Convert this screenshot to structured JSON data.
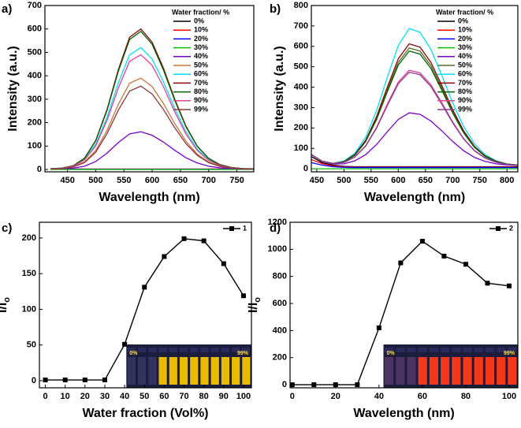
{
  "chart_data": [
    {
      "type": "line",
      "label": "a)",
      "xlabel": "Wavelength (nm)",
      "ylabel": "Intensity (a.u.)",
      "legend_title": "Water fraction/ %",
      "legend": "upper right",
      "grid": false,
      "xlim": [
        410,
        780
      ],
      "xticks": [
        450,
        500,
        550,
        600,
        650,
        700,
        750
      ],
      "ylim": [
        -10,
        700
      ],
      "yticks": [
        0,
        100,
        200,
        300,
        400,
        500,
        600,
        700
      ],
      "x": [
        420,
        440,
        460,
        480,
        500,
        520,
        540,
        560,
        580,
        600,
        620,
        640,
        660,
        680,
        700,
        720,
        740,
        760,
        780
      ],
      "series": [
        {
          "name": "0%",
          "color": "#000000",
          "values": [
            4,
            1,
            1,
            1,
            1,
            1,
            1,
            1,
            1,
            1,
            1,
            1,
            1,
            1,
            1,
            1,
            1,
            1,
            1
          ]
        },
        {
          "name": "10%",
          "color": "#ff0000",
          "values": [
            2,
            2,
            2,
            2,
            2,
            2,
            2,
            2,
            2,
            2,
            2,
            2,
            2,
            2,
            2,
            2,
            2,
            2,
            2
          ]
        },
        {
          "name": "20%",
          "color": "#0000ff",
          "values": [
            1,
            1,
            1,
            1,
            1,
            1,
            1,
            1,
            1,
            1,
            1,
            1,
            1,
            1,
            1,
            1,
            1,
            1,
            1
          ]
        },
        {
          "name": "30%",
          "color": "#00c000",
          "values": [
            0,
            0,
            0,
            0,
            0,
            0,
            0,
            0,
            0,
            0,
            0,
            0,
            0,
            0,
            0,
            0,
            0,
            0,
            0
          ]
        },
        {
          "name": "40%",
          "color": "#7a00c8",
          "values": [
            2,
            3,
            6,
            14,
            34,
            70,
            115,
            152,
            161,
            146,
            117,
            82,
            50,
            28,
            14,
            7,
            4,
            2,
            2
          ]
        },
        {
          "name": "50%",
          "color": "#c8783c",
          "values": [
            2,
            4,
            11,
            32,
            81,
            167,
            278,
            368,
            390,
            354,
            281,
            196,
            120,
            65,
            32,
            14,
            6,
            3,
            2
          ]
        },
        {
          "name": "60%",
          "color": "#00e0f0",
          "values": [
            3,
            5,
            14,
            42,
            108,
            222,
            370,
            490,
            520,
            471,
            374,
            260,
            160,
            86,
            42,
            18,
            8,
            4,
            3
          ]
        },
        {
          "name": "70%",
          "color": "#8b0000",
          "values": [
            3,
            6,
            16,
            48,
            124,
            256,
            426,
            565,
            600,
            543,
            432,
            300,
            184,
            99,
            48,
            21,
            9,
            4,
            3
          ]
        },
        {
          "name": "80%",
          "color": "#006400",
          "values": [
            3,
            6,
            16,
            47,
            122,
            252,
            419,
            555,
            590,
            534,
            424,
            295,
            181,
            98,
            47,
            20,
            8,
            4,
            3
          ]
        },
        {
          "name": "90%",
          "color": "#e0409c",
          "values": [
            2,
            5,
            14,
            40,
            101,
            210,
            348,
            462,
            490,
            444,
            353,
            246,
            150,
            81,
            39,
            17,
            7,
            3,
            2
          ]
        },
        {
          "name": "99%",
          "color": "#8b3a3a",
          "values": [
            2,
            4,
            11,
            29,
            74,
            153,
            253,
            335,
            356,
            322,
            256,
            178,
            110,
            60,
            29,
            13,
            6,
            3,
            2
          ]
        }
      ]
    },
    {
      "type": "line",
      "label": "b)",
      "xlabel": "Wavelength (nm)",
      "ylabel": "Intensity (a.u.)",
      "legend_title": "Water fraction/ %",
      "legend": "upper right",
      "grid": false,
      "xlim": [
        440,
        820
      ],
      "xticks": [
        450,
        500,
        550,
        600,
        650,
        700,
        750,
        800
      ],
      "ylim": [
        -15,
        800
      ],
      "yticks": [
        0,
        100,
        200,
        300,
        400,
        500,
        600,
        700,
        800
      ],
      "x": [
        440,
        460,
        480,
        500,
        520,
        540,
        560,
        580,
        600,
        620,
        640,
        660,
        680,
        700,
        720,
        740,
        760,
        780,
        800,
        820
      ],
      "series": [
        {
          "name": "0%",
          "color": "#000000",
          "values": [
            60,
            30,
            18,
            12,
            10,
            10,
            10,
            10,
            10,
            10,
            10,
            10,
            10,
            10,
            10,
            10,
            10,
            10,
            10,
            10
          ]
        },
        {
          "name": "10%",
          "color": "#ff0000",
          "values": [
            45,
            25,
            14,
            10,
            8,
            8,
            8,
            8,
            8,
            8,
            8,
            8,
            8,
            8,
            8,
            8,
            8,
            8,
            8,
            8
          ]
        },
        {
          "name": "20%",
          "color": "#0000ff",
          "values": [
            30,
            18,
            10,
            7,
            6,
            6,
            6,
            6,
            6,
            6,
            6,
            6,
            6,
            6,
            6,
            6,
            6,
            6,
            6,
            6
          ]
        },
        {
          "name": "30%",
          "color": "#00c000",
          "values": [
            0,
            0,
            0,
            0,
            0,
            0,
            0,
            0,
            0,
            0,
            0,
            0,
            0,
            0,
            0,
            0,
            0,
            0,
            0,
            0
          ]
        },
        {
          "name": "40%",
          "color": "#7a00c8",
          "values": [
            70,
            36,
            23,
            24,
            39,
            69,
            119,
            182,
            242,
            274,
            267,
            234,
            186,
            134,
            89,
            56,
            36,
            24,
            19,
            16
          ]
        },
        {
          "name": "50%",
          "color": "#556b2f",
          "values": [
            70,
            37,
            26,
            35,
            68,
            136,
            247,
            389,
            521,
            592,
            577,
            505,
            396,
            281,
            181,
            107,
            61,
            36,
            23,
            18
          ]
        },
        {
          "name": "60%",
          "color": "#00e0f0",
          "values": [
            70,
            37,
            27,
            38,
            76,
            155,
            285,
            450,
            604,
            687,
            669,
            585,
            458,
            324,
            208,
            122,
            69,
            39,
            24,
            18
          ]
        },
        {
          "name": "70%",
          "color": "#8b0000",
          "values": [
            70,
            37,
            26,
            35,
            70,
            140,
            255,
            401,
            539,
            612,
            596,
            521,
            409,
            290,
            187,
            110,
            63,
            37,
            23,
            18
          ]
        },
        {
          "name": "80%",
          "color": "#006400",
          "values": [
            70,
            37,
            26,
            34,
            66,
            133,
            241,
            379,
            508,
            577,
            562,
            492,
            386,
            274,
            177,
            105,
            60,
            35,
            23,
            18
          ]
        },
        {
          "name": "90%",
          "color": "#e0409c",
          "values": [
            70,
            36,
            25,
            31,
            58,
            113,
            203,
            318,
            425,
            483,
            470,
            412,
            324,
            230,
            149,
            90,
            53,
            32,
            22,
            17
          ]
        },
        {
          "name": "99%",
          "color": "#8b3a8b",
          "values": [
            70,
            36,
            25,
            31,
            57,
            111,
            199,
            311,
            417,
            473,
            461,
            403,
            317,
            226,
            147,
            88,
            52,
            32,
            21,
            17
          ]
        }
      ]
    },
    {
      "type": "line",
      "label": "c)",
      "xlabel": "Water fraction (Vol%)",
      "ylabel": {
        "main": "I/I",
        "sub": "o"
      },
      "legend": "upper right",
      "grid": false,
      "marker": "square",
      "xlim": [
        -3,
        104
      ],
      "xticks": [
        0,
        10,
        20,
        30,
        40,
        50,
        60,
        70,
        80,
        90,
        100
      ],
      "ylim": [
        -10,
        222
      ],
      "yticks": [
        0,
        50,
        100,
        150,
        200
      ],
      "x": [
        0,
        10,
        20,
        30,
        40,
        50,
        60,
        70,
        80,
        90,
        100
      ],
      "series": [
        {
          "name": "1",
          "color": "#000000",
          "values": [
            1,
            1,
            1,
            1,
            51,
            131,
            174,
            199,
            196,
            164,
            119
          ]
        }
      ],
      "inset": {
        "left_label": "0%",
        "right_label": "99%"
      }
    },
    {
      "type": "line",
      "label": "d)",
      "xlabel": "Wavelength (nm)",
      "ylabel": {
        "main": "I/I",
        "sub": "o"
      },
      "legend": "upper right",
      "grid": false,
      "marker": "square",
      "xlim": [
        -1,
        104
      ],
      "xticks": [
        0,
        20,
        40,
        60,
        80,
        100
      ],
      "ylim": [
        -23,
        1200
      ],
      "yticks": [
        0,
        200,
        400,
        600,
        800,
        1000,
        1200
      ],
      "x": [
        0,
        10,
        20,
        30,
        40,
        50,
        60,
        70,
        80,
        90,
        100
      ],
      "series": [
        {
          "name": "2",
          "color": "#000000",
          "values": [
            0,
            0,
            0,
            0,
            420,
            900,
            1060,
            950,
            890,
            750,
            730
          ]
        }
      ],
      "inset": {
        "left_label": "0%",
        "right_label": "99%"
      }
    }
  ]
}
